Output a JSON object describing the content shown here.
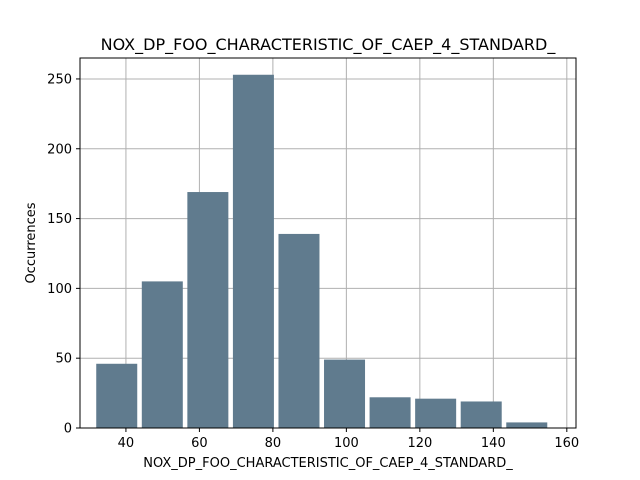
{
  "chart_data": {
    "type": "bar",
    "title": "NOX_DP_FOO_CHARACTERISTIC_OF_CAEP_4_STANDARD_",
    "xlabel": "NOX_DP_FOO_CHARACTERISTIC_OF_CAEP_4_STANDARD_",
    "ylabel": "Occurrences",
    "bins": [
      {
        "start": 31.3,
        "end": 43.7,
        "count": 46
      },
      {
        "start": 43.7,
        "end": 56.1,
        "count": 105
      },
      {
        "start": 56.1,
        "end": 68.5,
        "count": 169
      },
      {
        "start": 68.5,
        "end": 80.9,
        "count": 253
      },
      {
        "start": 80.9,
        "end": 93.3,
        "count": 139
      },
      {
        "start": 93.3,
        "end": 105.7,
        "count": 49
      },
      {
        "start": 105.7,
        "end": 118.1,
        "count": 22
      },
      {
        "start": 118.1,
        "end": 130.5,
        "count": 21
      },
      {
        "start": 130.5,
        "end": 142.9,
        "count": 19
      },
      {
        "start": 142.9,
        "end": 155.3,
        "count": 4
      }
    ],
    "bar_width_fraction": 0.9,
    "xlim": [
      27.5,
      162.5
    ],
    "ylim": [
      0,
      265
    ],
    "xticks": [
      40,
      60,
      80,
      100,
      120,
      140,
      160
    ],
    "yticks": [
      0,
      50,
      100,
      150,
      200,
      250
    ],
    "grid": true,
    "bar_color": "#607b8e",
    "grid_color": "#b0b0b0"
  }
}
